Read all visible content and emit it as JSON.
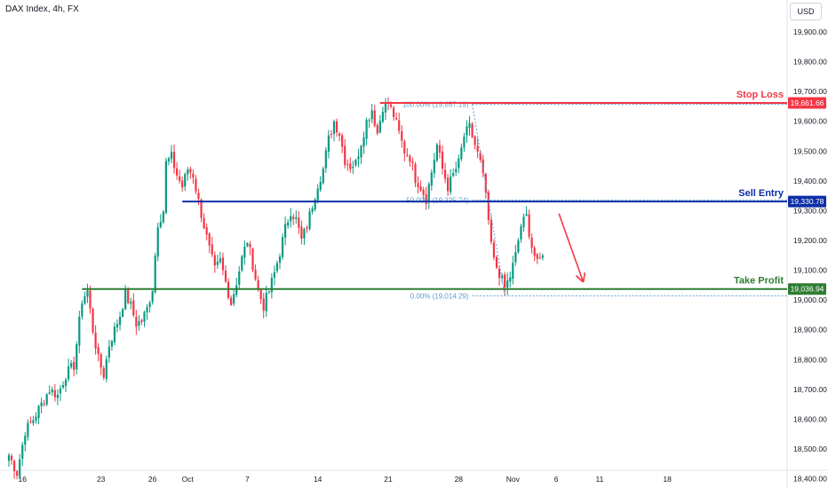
{
  "header": {
    "title": "DAX Index, 4h, FX",
    "currency": "USD"
  },
  "colors": {
    "up": "#089981",
    "down": "#f23645",
    "stop_loss": "#f23645",
    "sell_entry": "#0d2fa6",
    "take_profit": "#2e7d32",
    "fib": "#5b9bd5",
    "arrow": "#f23645"
  },
  "chart_data": {
    "type": "candlestick",
    "ylim": [
      18350,
      20000
    ],
    "y_ticks": [
      "19,900.00",
      "19,800.00",
      "19,700.00",
      "19,600.00",
      "19,500.00",
      "19,400.00",
      "19,300.00",
      "19,200.00",
      "19,100.00",
      "19,000.00",
      "18,900.00",
      "18,800.00",
      "18,700.00",
      "18,600.00",
      "18,500.00",
      "18,400.00"
    ],
    "y_tick_values": [
      19900,
      19800,
      19700,
      19600,
      19500,
      19400,
      19300,
      19200,
      19100,
      19000,
      18900,
      18800,
      18700,
      18600,
      18500,
      18400
    ],
    "x_ticks": [
      "16",
      "23",
      "26",
      "Oct",
      "7",
      "14",
      "21",
      "28",
      "Nov",
      "6",
      "11",
      "18"
    ],
    "x_tick_index": [
      5,
      34,
      53,
      66,
      88,
      114,
      140,
      166,
      186,
      202,
      218,
      243
    ],
    "levels": [
      {
        "key": "stop_loss",
        "label": "Stop Loss",
        "price": 19661.66,
        "price_label": "19,661.66",
        "start_index": 137
      },
      {
        "key": "sell_entry",
        "label": "Sell Entry",
        "price": 19330.78,
        "price_label": "19,330.78",
        "start_index": 64
      },
      {
        "key": "take_profit",
        "label": "Take Profit",
        "price": 19036.94,
        "price_label": "19,036.94",
        "start_index": 27
      }
    ],
    "fib_levels": [
      {
        "label": "100.00% (19,657.19)",
        "price": 19657.19
      },
      {
        "label": "50.00% (19,335.74)",
        "price": 19335.74
      },
      {
        "label": "0.00% (19,014.29)",
        "price": 19014.29
      }
    ],
    "fib_anchor": {
      "start_index": 171,
      "start_price": 19657.19,
      "end_index": 183,
      "end_price": 19014.29
    },
    "arrow": {
      "from_index": 203,
      "from_price": 19290,
      "to_index": 212,
      "to_price": 19060
    },
    "anchors": [
      [
        0,
        18480
      ],
      [
        3,
        18420
      ],
      [
        6,
        18560
      ],
      [
        9,
        18600
      ],
      [
        12,
        18650
      ],
      [
        15,
        18700
      ],
      [
        18,
        18680
      ],
      [
        21,
        18750
      ],
      [
        24,
        18780
      ],
      [
        27,
        19000
      ],
      [
        29,
        19030
      ],
      [
        31,
        18900
      ],
      [
        33,
        18800
      ],
      [
        35,
        18750
      ],
      [
        37,
        18850
      ],
      [
        39,
        18900
      ],
      [
        41,
        18950
      ],
      [
        43,
        19020
      ],
      [
        45,
        18980
      ],
      [
        47,
        18920
      ],
      [
        49,
        18930
      ],
      [
        51,
        18970
      ],
      [
        53,
        19040
      ],
      [
        55,
        19260
      ],
      [
        57,
        19300
      ],
      [
        58,
        19460
      ],
      [
        60,
        19480
      ],
      [
        62,
        19420
      ],
      [
        64,
        19380
      ],
      [
        66,
        19440
      ],
      [
        68,
        19420
      ],
      [
        70,
        19330
      ],
      [
        72,
        19250
      ],
      [
        74,
        19170
      ],
      [
        76,
        19100
      ],
      [
        78,
        19130
      ],
      [
        80,
        19060
      ],
      [
        82,
        18990
      ],
      [
        84,
        19060
      ],
      [
        86,
        19140
      ],
      [
        88,
        19200
      ],
      [
        90,
        19120
      ],
      [
        92,
        19030
      ],
      [
        94,
        18980
      ],
      [
        96,
        19030
      ],
      [
        98,
        19090
      ],
      [
        100,
        19160
      ],
      [
        102,
        19240
      ],
      [
        104,
        19300
      ],
      [
        106,
        19270
      ],
      [
        108,
        19200
      ],
      [
        110,
        19250
      ],
      [
        112,
        19320
      ],
      [
        114,
        19390
      ],
      [
        116,
        19440
      ],
      [
        118,
        19540
      ],
      [
        120,
        19600
      ],
      [
        122,
        19560
      ],
      [
        124,
        19470
      ],
      [
        126,
        19450
      ],
      [
        128,
        19460
      ],
      [
        130,
        19530
      ],
      [
        132,
        19600
      ],
      [
        134,
        19640
      ],
      [
        136,
        19560
      ],
      [
        138,
        19650
      ],
      [
        140,
        19660
      ],
      [
        142,
        19620
      ],
      [
        144,
        19560
      ],
      [
        146,
        19500
      ],
      [
        148,
        19480
      ],
      [
        150,
        19410
      ],
      [
        152,
        19380
      ],
      [
        154,
        19340
      ],
      [
        156,
        19430
      ],
      [
        158,
        19520
      ],
      [
        160,
        19440
      ],
      [
        162,
        19380
      ],
      [
        164,
        19420
      ],
      [
        166,
        19460
      ],
      [
        168,
        19550
      ],
      [
        170,
        19580
      ],
      [
        172,
        19520
      ],
      [
        174,
        19460
      ],
      [
        176,
        19360
      ],
      [
        177,
        19250
      ],
      [
        179,
        19130
      ],
      [
        181,
        19090
      ],
      [
        183,
        19040
      ],
      [
        185,
        19080
      ],
      [
        187,
        19150
      ],
      [
        189,
        19250
      ],
      [
        191,
        19280
      ],
      [
        193,
        19180
      ],
      [
        195,
        19120
      ],
      [
        197,
        19150
      ]
    ]
  }
}
